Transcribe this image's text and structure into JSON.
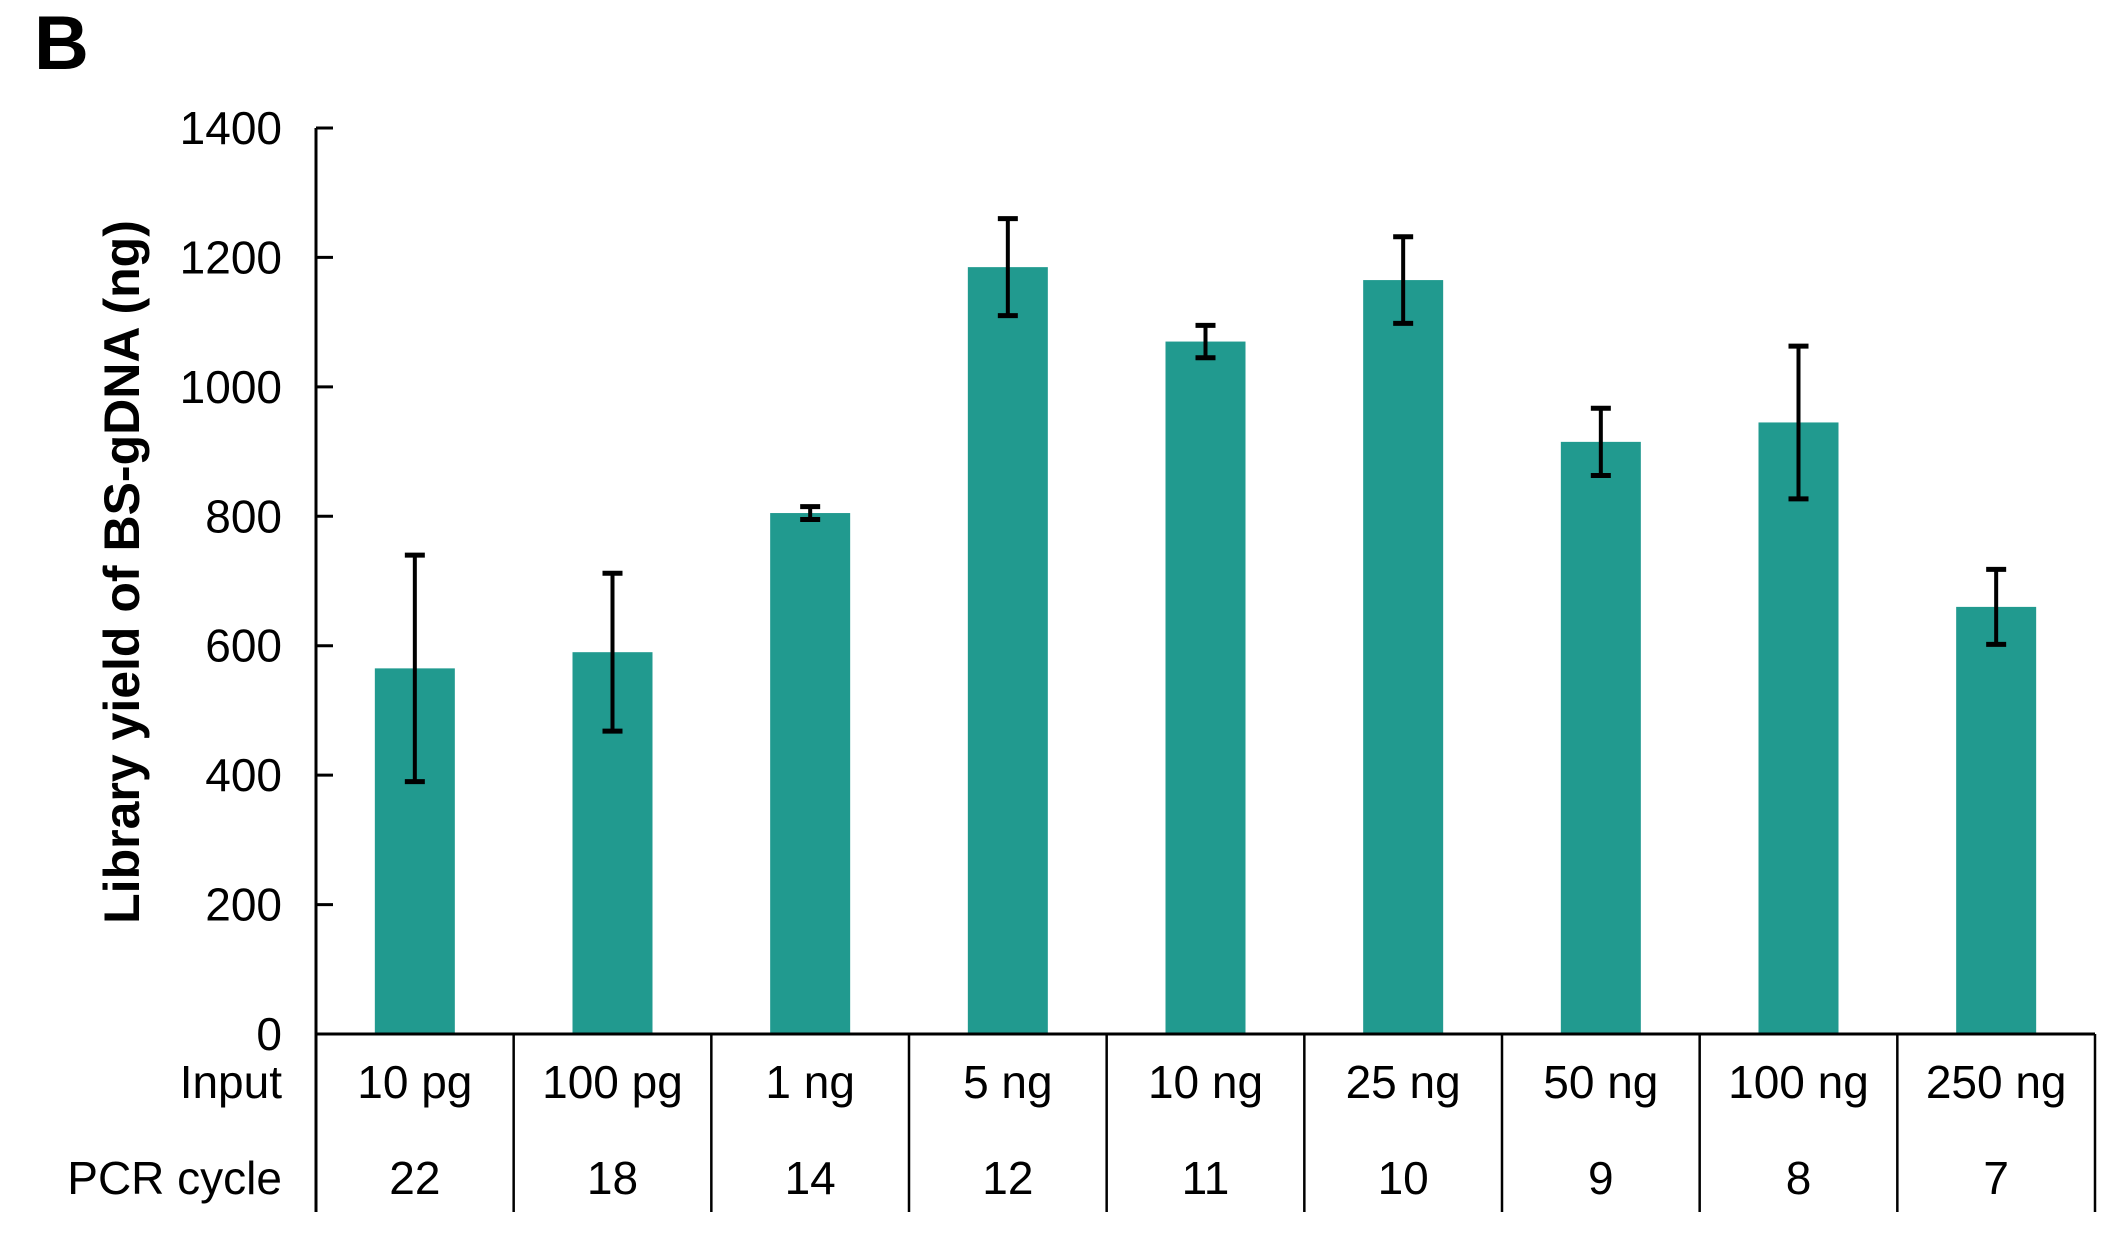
{
  "panel_label": "B",
  "chart_data": {
    "type": "bar",
    "title": "",
    "xlabel": "",
    "ylabel": "Library yield of BS-gDNA (ng)",
    "ylim": [
      0,
      1400
    ],
    "yticks": [
      0,
      200,
      400,
      600,
      800,
      1000,
      1200,
      1400
    ],
    "grid": false,
    "legend": null,
    "bar_color": "#219A8F",
    "axis_color": "#000000",
    "error_bar_color": "#000000",
    "categories": [
      "10 pg",
      "100 pg",
      "1 ng",
      "5 ng",
      "10 ng",
      "25 ng",
      "50 ng",
      "100 ng",
      "250 ng"
    ],
    "series": [
      {
        "name": "Library yield",
        "values": [
          565,
          590,
          805,
          1185,
          1070,
          1165,
          915,
          945,
          660
        ],
        "errors": [
          175,
          122,
          10,
          75,
          25,
          67,
          52,
          118,
          58
        ]
      }
    ],
    "x_table": {
      "row_labels": [
        "Input",
        "PCR cycle"
      ],
      "rows": [
        [
          "10 pg",
          "100 pg",
          "1 ng",
          "5 ng",
          "10 ng",
          "25 ng",
          "50 ng",
          "100 ng",
          "250 ng"
        ],
        [
          "22",
          "18",
          "14",
          "12",
          "11",
          "10",
          "9",
          "8",
          "7"
        ]
      ]
    }
  }
}
